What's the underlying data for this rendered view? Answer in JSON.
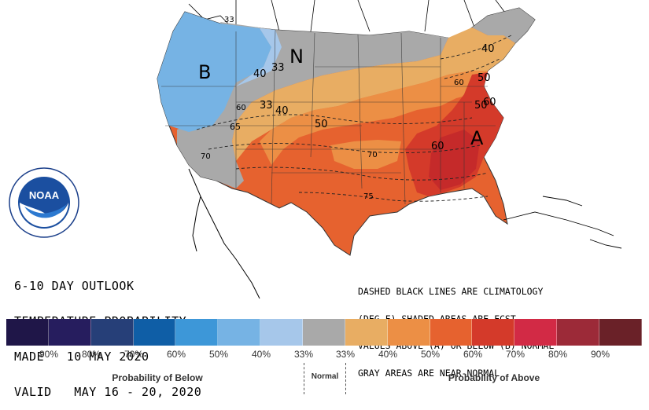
{
  "map": {
    "region_labels": [
      "B",
      "N",
      "A"
    ],
    "contour_labels": [
      "33",
      "33",
      "33",
      "40",
      "40",
      "40",
      "50",
      "50",
      "50",
      "60",
      "60",
      "60",
      "60",
      "65",
      "70",
      "70",
      "75"
    ]
  },
  "title": {
    "line1": "6-10 DAY OUTLOOK",
    "line2": "TEMPERATURE PROBABILITY",
    "line3": "MADE   10 MAY 2020",
    "line4": "VALID   MAY 16 - 20, 2020"
  },
  "note": {
    "line1": "DASHED BLACK LINES ARE CLIMATOLOGY",
    "line2": "(DEG F) SHADED AREAS ARE FCST",
    "line3": "VALUES ABOVE (A) OR BELOW (B) NORMAL",
    "line4": "GRAY AREAS ARE NEAR-NORMAL"
  },
  "logo": {
    "text": "NOAA"
  },
  "legend": {
    "swatch_colors": [
      "#1f1648",
      "#261d5e",
      "#263f78",
      "#0f5ea6",
      "#3d97d8",
      "#76b3e4",
      "#a6c7ea",
      "#a9a9a9",
      "#e8ad63",
      "#ec8f45",
      "#e6622f",
      "#d43a2a",
      "#d22a45",
      "#9c2a38",
      "#6a2128"
    ],
    "below_labels": [
      "90%",
      "80%",
      "70%",
      "60%",
      "50%",
      "40%",
      "33%"
    ],
    "above_labels": [
      "33%",
      "40%",
      "50%",
      "60%",
      "70%",
      "80%",
      "90%"
    ],
    "below_caption": "Probability of Below",
    "normal_caption": "Normal",
    "above_caption": "Probability of Above"
  }
}
